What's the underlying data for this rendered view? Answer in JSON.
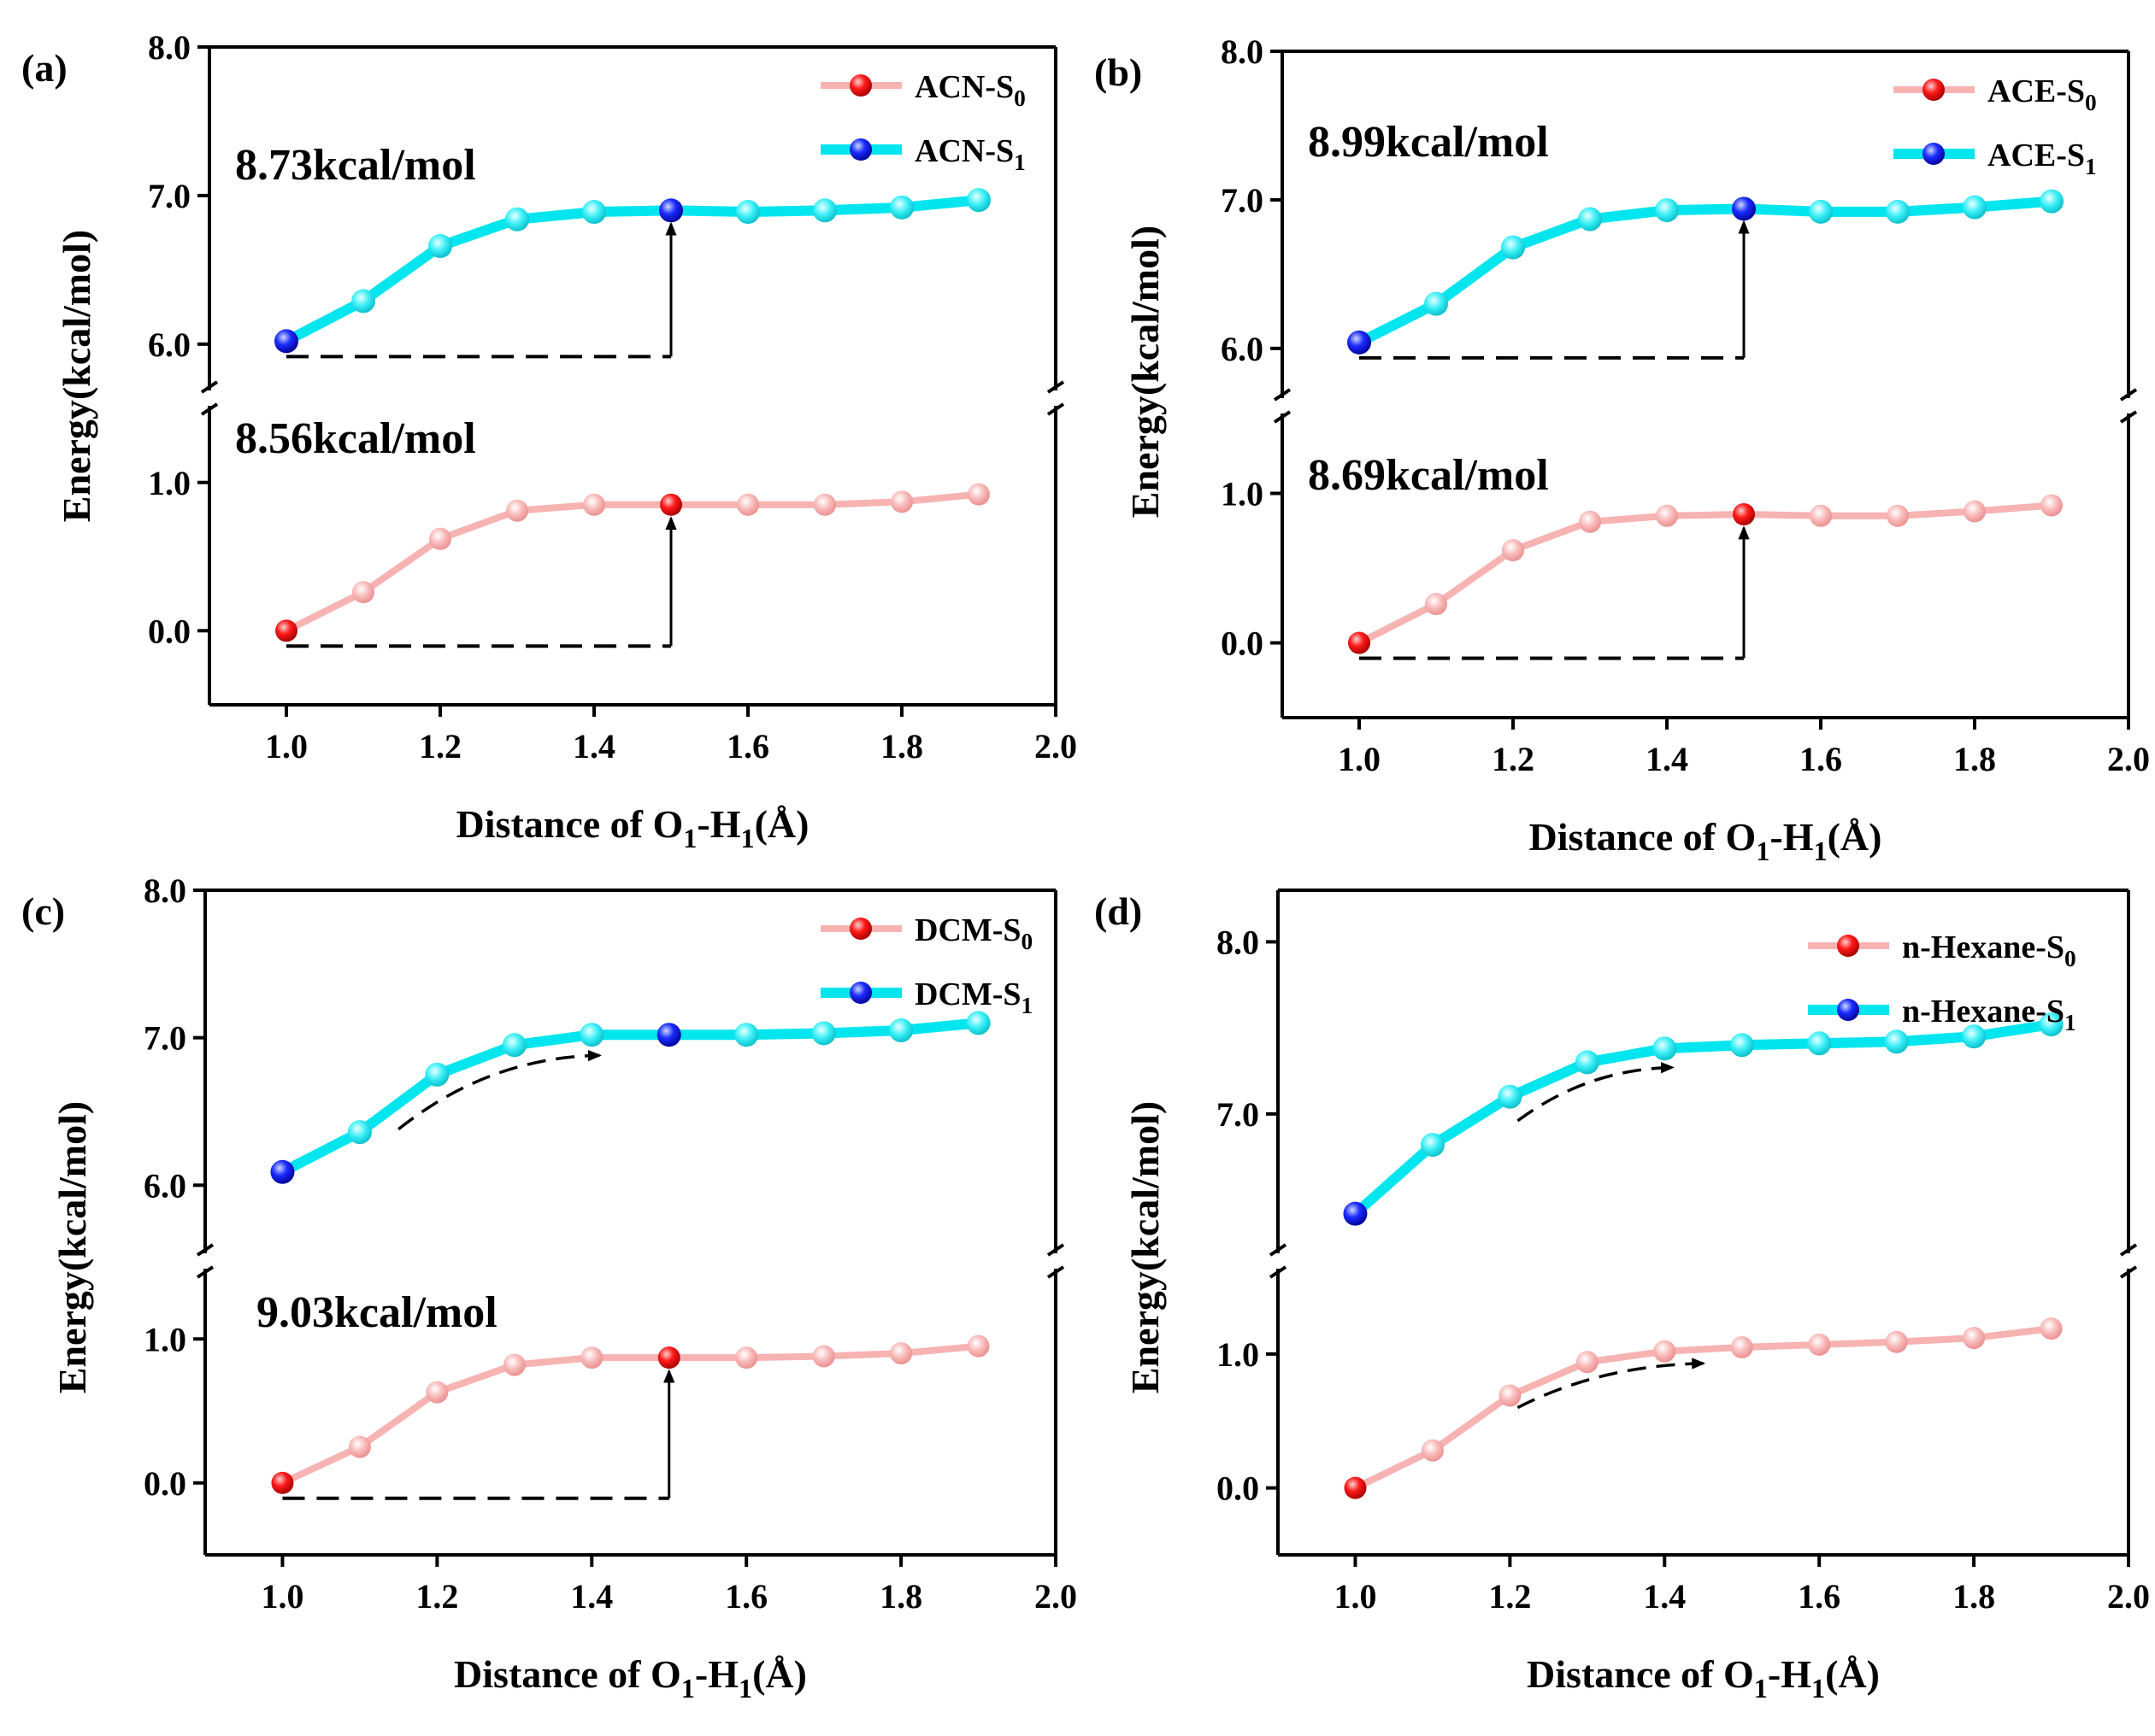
{
  "chart_data": [
    {
      "type": "line",
      "panel_label": "(a)",
      "xlabel": "Distance of O1-H1(Å)",
      "ylabel": "Energy(kcal/mol)",
      "xlim": [
        0.9,
        2.0
      ],
      "x_ticks": [
        "1.0",
        "1.2",
        "1.4",
        "1.6",
        "1.8",
        "2.0"
      ],
      "y_ticks_lower": [
        "0.0",
        "1.0"
      ],
      "y_ticks_upper": [
        "6.0",
        "7.0",
        "8.0"
      ],
      "y_axis_break": true,
      "x": [
        1.0,
        1.1,
        1.2,
        1.3,
        1.4,
        1.5,
        1.6,
        1.7,
        1.8,
        1.9
      ],
      "series": [
        {
          "name": "ACN-S0",
          "state": "S0",
          "color": "#f7b2b2",
          "marker_color": "#ff0000",
          "values": [
            0.0,
            0.26,
            0.62,
            0.81,
            0.85,
            0.85,
            0.85,
            0.85,
            0.87,
            0.92
          ]
        },
        {
          "name": "ACN-S1",
          "state": "S1",
          "color": "#00e5ee",
          "marker_color": "#0000ff",
          "values": [
            6.02,
            6.29,
            6.66,
            6.84,
            6.89,
            6.9,
            6.89,
            6.9,
            6.92,
            6.97
          ]
        }
      ],
      "highlight_x": 1.5,
      "annotations": [
        {
          "text": "8.73kcal/mol",
          "series": "S1"
        },
        {
          "text": "8.56kcal/mol",
          "series": "S0"
        }
      ],
      "legend_position": "top-right"
    },
    {
      "type": "line",
      "panel_label": "(b)",
      "xlabel": "Distance of O1-H1(Å)",
      "ylabel": "Energy(kcal/mol)",
      "xlim": [
        0.9,
        2.0
      ],
      "x_ticks": [
        "1.0",
        "1.2",
        "1.4",
        "1.6",
        "1.8",
        "2.0"
      ],
      "y_ticks_lower": [
        "0.0",
        "1.0"
      ],
      "y_ticks_upper": [
        "6.0",
        "7.0",
        "8.0"
      ],
      "y_axis_break": true,
      "x": [
        1.0,
        1.1,
        1.2,
        1.3,
        1.4,
        1.5,
        1.6,
        1.7,
        1.8,
        1.9
      ],
      "series": [
        {
          "name": "ACE-S0",
          "state": "S0",
          "color": "#f7b2b2",
          "marker_color": "#ff0000",
          "values": [
            0.0,
            0.26,
            0.62,
            0.81,
            0.85,
            0.86,
            0.85,
            0.85,
            0.88,
            0.92
          ]
        },
        {
          "name": "ACE-S1",
          "state": "S1",
          "color": "#00e5ee",
          "marker_color": "#0000ff",
          "values": [
            6.04,
            6.3,
            6.68,
            6.87,
            6.93,
            6.94,
            6.92,
            6.92,
            6.95,
            6.99
          ]
        }
      ],
      "highlight_x": 1.5,
      "annotations": [
        {
          "text": "8.99kcal/mol",
          "series": "S1"
        },
        {
          "text": "8.69kcal/mol",
          "series": "S0"
        }
      ],
      "legend_position": "top-right"
    },
    {
      "type": "line",
      "panel_label": "(c)",
      "xlabel": "Distance of O1-H1(Å)",
      "ylabel": "Energy(kcal/mol)",
      "xlim": [
        0.9,
        2.0
      ],
      "x_ticks": [
        "1.0",
        "1.2",
        "1.4",
        "1.6",
        "1.8",
        "2.0"
      ],
      "y_ticks_lower": [
        "0.0",
        "1.0"
      ],
      "y_ticks_upper": [
        "6.0",
        "7.0",
        "8.0"
      ],
      "y_axis_break": true,
      "x": [
        1.0,
        1.1,
        1.2,
        1.3,
        1.4,
        1.5,
        1.6,
        1.7,
        1.8,
        1.9
      ],
      "series": [
        {
          "name": "DCM-S0",
          "state": "S0",
          "color": "#f7b2b2",
          "marker_color": "#ff0000",
          "values": [
            0.0,
            0.25,
            0.63,
            0.82,
            0.87,
            0.87,
            0.87,
            0.88,
            0.9,
            0.95
          ]
        },
        {
          "name": "DCM-S1",
          "state": "S1",
          "color": "#00e5ee",
          "marker_color": "#0000ff",
          "values": [
            6.09,
            6.36,
            6.75,
            6.95,
            7.02,
            7.02,
            7.02,
            7.03,
            7.05,
            7.1
          ]
        }
      ],
      "highlight_x": 1.5,
      "annotations": [
        {
          "text": "9.03kcal/mol",
          "series": "S0"
        }
      ],
      "legend_position": "top-right"
    },
    {
      "type": "line",
      "panel_label": "(d)",
      "xlabel": "Distance of O1-H1(Å)",
      "ylabel": "Energy(kcal/mol)",
      "xlim": [
        0.9,
        2.0
      ],
      "x_ticks": [
        "1.0",
        "1.2",
        "1.4",
        "1.6",
        "1.8",
        "2.0"
      ],
      "y_ticks_lower": [
        "0.0",
        "1.0"
      ],
      "y_ticks_upper": [
        "7.0",
        "8.0"
      ],
      "y_axis_break": true,
      "x": [
        1.0,
        1.1,
        1.2,
        1.3,
        1.4,
        1.5,
        1.6,
        1.7,
        1.8,
        1.9
      ],
      "series": [
        {
          "name": "n-Hexane-S0",
          "state": "S0",
          "color": "#f7b2b2",
          "marker_color": "#ff0000",
          "values": [
            0.0,
            0.28,
            0.69,
            0.94,
            1.02,
            1.05,
            1.07,
            1.09,
            1.12,
            1.19
          ]
        },
        {
          "name": "n-Hexane-S1",
          "state": "S1",
          "color": "#00e5ee",
          "marker_color": "#0000ff",
          "values": [
            6.42,
            6.82,
            7.1,
            7.3,
            7.38,
            7.4,
            7.41,
            7.42,
            7.45,
            7.52
          ]
        }
      ],
      "highlight_x": null,
      "annotations": [],
      "legend_position": "top-right"
    }
  ]
}
